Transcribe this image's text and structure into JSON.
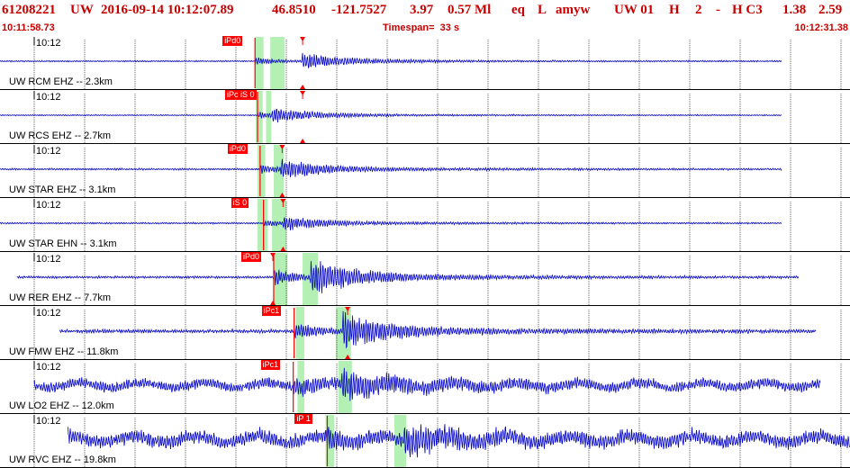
{
  "header": {
    "event_id": "61208221",
    "network": "UW",
    "origin": "2016-09-14 10:12:07.89",
    "latitude": "46.8510",
    "longitude": "-121.7527",
    "depth": "3.97",
    "magnitude": "0.57 Ml",
    "type": "eq",
    "flag": "L",
    "author": "amyw",
    "source": "UW 01",
    "quality_h": "H",
    "quality_num": "2",
    "dash": "-",
    "quality_c": "H C3",
    "val1": "1.38",
    "val2": "2.59",
    "start_time": "10:11:58.73",
    "timespan": "Timespan=  33 s",
    "end_time": "10:12:31.38"
  },
  "colors": {
    "header_text": "#c80000",
    "trace": "#0000c8",
    "pick": "#ff0000",
    "window": "#b4f0b4",
    "gridline": "#000000"
  },
  "panels": [
    {
      "label": "UW RCM EHZ -- 2.3km",
      "time_label": "10:12",
      "pick": "iPd0",
      "amp": 6,
      "noise": 0.6,
      "start": 0.0,
      "end": 0.92,
      "arr": 0.3,
      "sarr": 0.355,
      "win": [
        [
          0.3,
          0.31
        ],
        [
          0.318,
          0.335
        ]
      ],
      "mark": 0.356
    },
    {
      "label": "UW RCS EHZ -- 2.7km",
      "time_label": "10:12",
      "pick": "iPc iS 0",
      "amp": 5,
      "noise": 0.5,
      "start": 0.0,
      "end": 0.92,
      "arr": 0.303,
      "sarr": 0.32,
      "win": [
        [
          0.301,
          0.309
        ],
        [
          0.313,
          0.319
        ]
      ],
      "mark": 0.356
    },
    {
      "label": "UW STAR EHZ -- 3.1km",
      "time_label": "10:12",
      "pick": "iPd0",
      "amp": 7,
      "noise": 0.8,
      "start": 0.0,
      "end": 0.92,
      "arr": 0.306,
      "sarr": 0.33,
      "win": [
        [
          0.303,
          0.312
        ],
        [
          0.322,
          0.334
        ]
      ],
      "mark": 0.332
    },
    {
      "label": "UW STAR EHN -- 3.1km",
      "time_label": "10:12",
      "pick": "iS 0",
      "amp": 5,
      "noise": 0.7,
      "start": 0.0,
      "end": 0.92,
      "arr": 0.31,
      "sarr": 0.333,
      "win": [
        [
          0.303,
          0.315
        ],
        [
          0.32,
          0.337
        ]
      ],
      "mark": 0.333
    },
    {
      "label": "UW RER EHZ -- 7.7km",
      "time_label": "10:12",
      "pick": "iPd0",
      "amp": 14,
      "noise": 1.0,
      "start": 0.02,
      "end": 0.94,
      "arr": 0.322,
      "sarr": 0.365,
      "win": [
        [
          0.322,
          0.338
        ],
        [
          0.356,
          0.374
        ]
      ],
      "mark": 0.321
    },
    {
      "label": "UW FMW EHZ -- 11.8km",
      "time_label": "10:12",
      "pick": "iPc1",
      "amp": 14,
      "noise": 1.5,
      "start": 0.07,
      "end": 0.96,
      "arr": 0.346,
      "sarr": 0.403,
      "win": [
        [
          0.348,
          0.358
        ],
        [
          0.395,
          0.413
        ]
      ],
      "mark": 0.409
    },
    {
      "label": "UW LO2 EHZ -- 12.0km",
      "time_label": "10:12",
      "pick": "iPc1",
      "amp": 10,
      "noise": 4.5,
      "start": 0.04,
      "end": 0.965,
      "arr": 0.345,
      "sarr": 0.402,
      "win": [
        [
          0.35,
          0.358
        ],
        [
          0.398,
          0.414
        ]
      ],
      "mark": 0.0
    },
    {
      "label": "UW RVC EHZ -- 19.8km",
      "time_label": "10:12",
      "pick": "iP 1",
      "amp": 9,
      "noise": 6.0,
      "start": 0.08,
      "end": 1.0,
      "arr": 0.385,
      "sarr": 0.475,
      "win": [
        [
          0.383,
          0.393
        ],
        [
          0.464,
          0.478
        ]
      ],
      "mark": 0.0
    }
  ]
}
